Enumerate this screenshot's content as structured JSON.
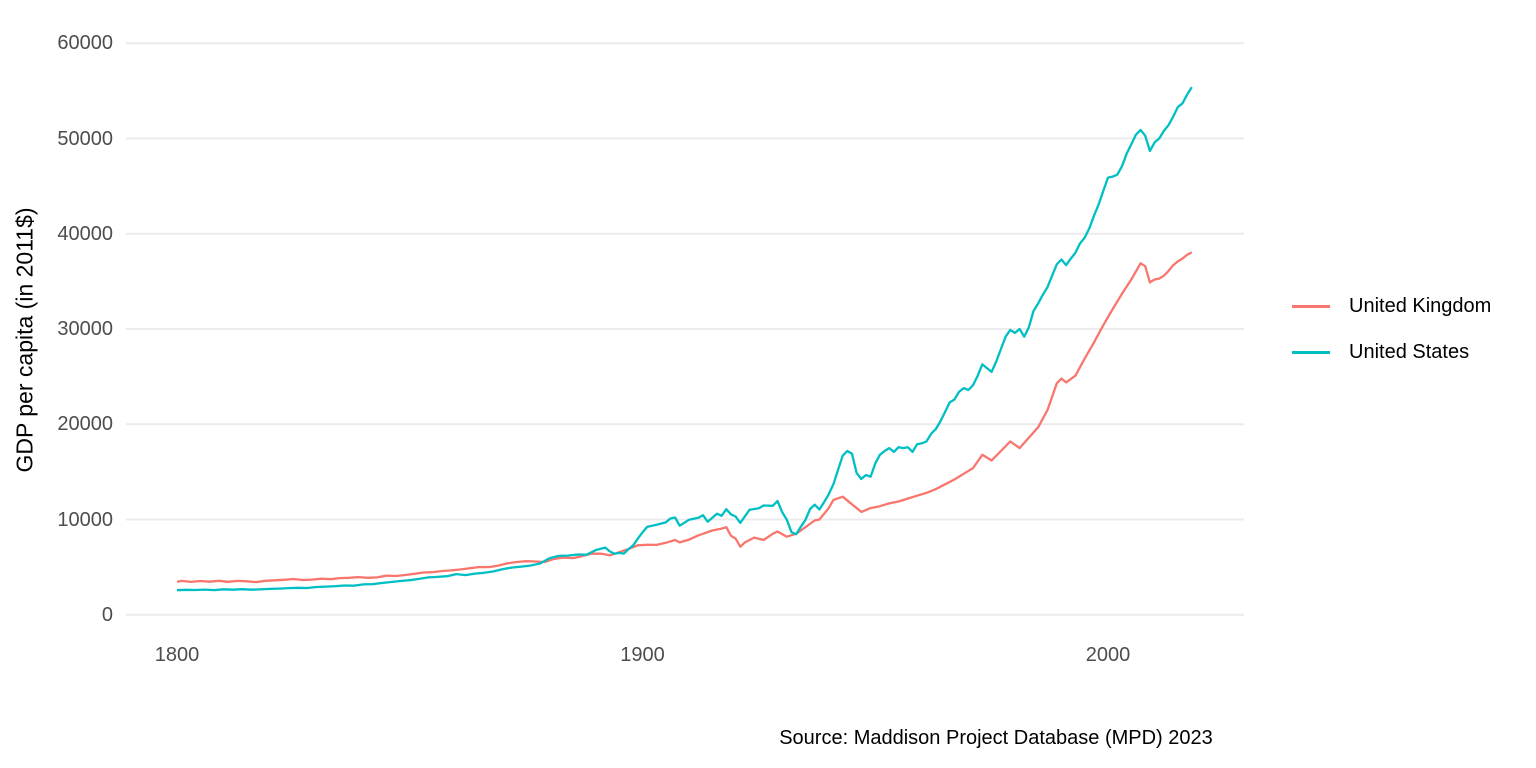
{
  "figure": {
    "y_axis_title": "GDP per capita (in 2011$)",
    "caption": "Source: Maddison Project Database (MPD) 2023"
  },
  "colors": {
    "background": "#FFFFFF",
    "gridline": "#EBEBEB",
    "tick_label": "#4D4D4D",
    "text": "#000000",
    "united_kingdom": "#F8766D",
    "united_states": "#00BFC4"
  },
  "chart_data": {
    "type": "line",
    "title": "",
    "xlabel": "",
    "ylabel": "GDP per capita (in 2011$)",
    "grid": "horizontal",
    "legend_position": "right",
    "xlim": [
      1789,
      2029
    ],
    "ylim": [
      0,
      60000
    ],
    "x_ticks": [
      1800,
      1900,
      2000
    ],
    "x_tick_labels": [
      "1800",
      "1900",
      "2000"
    ],
    "y_ticks": [
      0,
      10000,
      20000,
      30000,
      40000,
      50000,
      60000
    ],
    "y_tick_labels": [
      "0",
      "10000",
      "20000",
      "30000",
      "40000",
      "50000",
      "60000"
    ],
    "series": [
      {
        "name": "United Kingdom",
        "color": "#F8766D",
        "points": [
          [
            1800,
            3470
          ],
          [
            1801,
            3560
          ],
          [
            1803,
            3450
          ],
          [
            1805,
            3550
          ],
          [
            1807,
            3470
          ],
          [
            1809,
            3570
          ],
          [
            1811,
            3460
          ],
          [
            1813,
            3560
          ],
          [
            1815,
            3520
          ],
          [
            1817,
            3430
          ],
          [
            1819,
            3570
          ],
          [
            1821,
            3620
          ],
          [
            1823,
            3670
          ],
          [
            1825,
            3760
          ],
          [
            1827,
            3650
          ],
          [
            1829,
            3700
          ],
          [
            1831,
            3790
          ],
          [
            1833,
            3740
          ],
          [
            1835,
            3850
          ],
          [
            1837,
            3880
          ],
          [
            1839,
            3960
          ],
          [
            1841,
            3880
          ],
          [
            1843,
            3930
          ],
          [
            1845,
            4120
          ],
          [
            1847,
            4070
          ],
          [
            1849,
            4180
          ],
          [
            1851,
            4300
          ],
          [
            1853,
            4440
          ],
          [
            1855,
            4480
          ],
          [
            1857,
            4600
          ],
          [
            1859,
            4660
          ],
          [
            1861,
            4770
          ],
          [
            1863,
            4890
          ],
          [
            1865,
            5020
          ],
          [
            1867,
            5010
          ],
          [
            1869,
            5170
          ],
          [
            1871,
            5410
          ],
          [
            1873,
            5540
          ],
          [
            1875,
            5630
          ],
          [
            1877,
            5600
          ],
          [
            1879,
            5540
          ],
          [
            1881,
            5880
          ],
          [
            1883,
            6010
          ],
          [
            1885,
            5950
          ],
          [
            1887,
            6150
          ],
          [
            1889,
            6410
          ],
          [
            1891,
            6420
          ],
          [
            1893,
            6250
          ],
          [
            1895,
            6570
          ],
          [
            1897,
            6920
          ],
          [
            1899,
            7300
          ],
          [
            1901,
            7350
          ],
          [
            1903,
            7340
          ],
          [
            1905,
            7560
          ],
          [
            1907,
            7850
          ],
          [
            1908,
            7600
          ],
          [
            1910,
            7900
          ],
          [
            1912,
            8350
          ],
          [
            1913,
            8500
          ],
          [
            1915,
            8850
          ],
          [
            1917,
            9050
          ],
          [
            1918,
            9200
          ],
          [
            1919,
            8300
          ],
          [
            1920,
            8000
          ],
          [
            1921,
            7150
          ],
          [
            1922,
            7600
          ],
          [
            1924,
            8100
          ],
          [
            1926,
            7850
          ],
          [
            1928,
            8500
          ],
          [
            1929,
            8750
          ],
          [
            1931,
            8200
          ],
          [
            1933,
            8500
          ],
          [
            1935,
            9200
          ],
          [
            1937,
            9900
          ],
          [
            1938,
            10000
          ],
          [
            1940,
            11200
          ],
          [
            1941,
            12050
          ],
          [
            1943,
            12400
          ],
          [
            1945,
            11600
          ],
          [
            1947,
            10800
          ],
          [
            1949,
            11200
          ],
          [
            1951,
            11400
          ],
          [
            1953,
            11700
          ],
          [
            1955,
            11900
          ],
          [
            1957,
            12200
          ],
          [
            1959,
            12500
          ],
          [
            1961,
            12800
          ],
          [
            1963,
            13200
          ],
          [
            1965,
            13700
          ],
          [
            1967,
            14200
          ],
          [
            1969,
            14800
          ],
          [
            1971,
            15400
          ],
          [
            1973,
            16800
          ],
          [
            1974,
            16500
          ],
          [
            1975,
            16200
          ],
          [
            1977,
            17200
          ],
          [
            1979,
            18200
          ],
          [
            1981,
            17500
          ],
          [
            1983,
            18600
          ],
          [
            1985,
            19700
          ],
          [
            1987,
            21500
          ],
          [
            1989,
            24300
          ],
          [
            1990,
            24800
          ],
          [
            1991,
            24400
          ],
          [
            1993,
            25100
          ],
          [
            1995,
            26900
          ],
          [
            1997,
            28600
          ],
          [
            1999,
            30400
          ],
          [
            2001,
            32100
          ],
          [
            2003,
            33700
          ],
          [
            2005,
            35200
          ],
          [
            2007,
            36900
          ],
          [
            2008,
            36600
          ],
          [
            2009,
            34900
          ],
          [
            2010,
            35200
          ],
          [
            2011,
            35300
          ],
          [
            2012,
            35600
          ],
          [
            2013,
            36100
          ],
          [
            2014,
            36700
          ],
          [
            2015,
            37100
          ],
          [
            2016,
            37400
          ],
          [
            2017,
            37800
          ],
          [
            2018,
            38050
          ]
        ]
      },
      {
        "name": "United States",
        "color": "#00BFC4",
        "points": [
          [
            1800,
            2580
          ],
          [
            1802,
            2620
          ],
          [
            1804,
            2600
          ],
          [
            1806,
            2650
          ],
          [
            1808,
            2590
          ],
          [
            1810,
            2680
          ],
          [
            1812,
            2640
          ],
          [
            1814,
            2690
          ],
          [
            1816,
            2630
          ],
          [
            1818,
            2680
          ],
          [
            1820,
            2720
          ],
          [
            1822,
            2750
          ],
          [
            1824,
            2800
          ],
          [
            1826,
            2830
          ],
          [
            1828,
            2810
          ],
          [
            1830,
            2920
          ],
          [
            1832,
            2960
          ],
          [
            1834,
            3000
          ],
          [
            1836,
            3080
          ],
          [
            1838,
            3050
          ],
          [
            1840,
            3190
          ],
          [
            1842,
            3210
          ],
          [
            1844,
            3340
          ],
          [
            1846,
            3440
          ],
          [
            1848,
            3550
          ],
          [
            1850,
            3630
          ],
          [
            1852,
            3770
          ],
          [
            1854,
            3930
          ],
          [
            1856,
            3980
          ],
          [
            1858,
            4050
          ],
          [
            1860,
            4270
          ],
          [
            1862,
            4170
          ],
          [
            1864,
            4330
          ],
          [
            1866,
            4410
          ],
          [
            1868,
            4560
          ],
          [
            1870,
            4800
          ],
          [
            1872,
            4970
          ],
          [
            1874,
            5060
          ],
          [
            1876,
            5180
          ],
          [
            1878,
            5390
          ],
          [
            1880,
            5940
          ],
          [
            1882,
            6180
          ],
          [
            1884,
            6220
          ],
          [
            1886,
            6330
          ],
          [
            1888,
            6310
          ],
          [
            1890,
            6800
          ],
          [
            1892,
            7060
          ],
          [
            1893,
            6650
          ],
          [
            1894,
            6400
          ],
          [
            1895,
            6500
          ],
          [
            1896,
            6430
          ],
          [
            1897,
            6900
          ],
          [
            1898,
            7300
          ],
          [
            1899,
            8000
          ],
          [
            1900,
            8650
          ],
          [
            1901,
            9230
          ],
          [
            1903,
            9450
          ],
          [
            1905,
            9700
          ],
          [
            1906,
            10110
          ],
          [
            1907,
            10220
          ],
          [
            1908,
            9350
          ],
          [
            1910,
            9980
          ],
          [
            1912,
            10190
          ],
          [
            1913,
            10460
          ],
          [
            1914,
            9770
          ],
          [
            1916,
            10610
          ],
          [
            1917,
            10390
          ],
          [
            1918,
            11090
          ],
          [
            1919,
            10550
          ],
          [
            1920,
            10320
          ],
          [
            1921,
            9650
          ],
          [
            1923,
            11030
          ],
          [
            1925,
            11190
          ],
          [
            1926,
            11470
          ],
          [
            1928,
            11440
          ],
          [
            1929,
            11950
          ],
          [
            1930,
            10790
          ],
          [
            1931,
            9980
          ],
          [
            1932,
            8670
          ],
          [
            1933,
            8460
          ],
          [
            1934,
            9240
          ],
          [
            1935,
            9950
          ],
          [
            1936,
            11110
          ],
          [
            1937,
            11560
          ],
          [
            1938,
            11060
          ],
          [
            1939,
            11810
          ],
          [
            1940,
            12650
          ],
          [
            1941,
            13700
          ],
          [
            1942,
            15200
          ],
          [
            1943,
            16700
          ],
          [
            1944,
            17200
          ],
          [
            1945,
            16900
          ],
          [
            1946,
            14900
          ],
          [
            1947,
            14260
          ],
          [
            1948,
            14680
          ],
          [
            1949,
            14500
          ],
          [
            1950,
            15900
          ],
          [
            1951,
            16800
          ],
          [
            1952,
            17200
          ],
          [
            1953,
            17500
          ],
          [
            1954,
            17100
          ],
          [
            1955,
            17600
          ],
          [
            1956,
            17500
          ],
          [
            1957,
            17600
          ],
          [
            1958,
            17100
          ],
          [
            1959,
            17900
          ],
          [
            1960,
            18000
          ],
          [
            1961,
            18200
          ],
          [
            1962,
            19000
          ],
          [
            1963,
            19500
          ],
          [
            1964,
            20300
          ],
          [
            1965,
            21300
          ],
          [
            1966,
            22300
          ],
          [
            1967,
            22600
          ],
          [
            1968,
            23400
          ],
          [
            1969,
            23800
          ],
          [
            1970,
            23600
          ],
          [
            1971,
            24100
          ],
          [
            1972,
            25100
          ],
          [
            1973,
            26300
          ],
          [
            1974,
            25900
          ],
          [
            1975,
            25500
          ],
          [
            1976,
            26600
          ],
          [
            1977,
            27900
          ],
          [
            1978,
            29200
          ],
          [
            1979,
            29900
          ],
          [
            1980,
            29600
          ],
          [
            1981,
            30000
          ],
          [
            1982,
            29200
          ],
          [
            1983,
            30200
          ],
          [
            1984,
            31900
          ],
          [
            1985,
            32700
          ],
          [
            1986,
            33600
          ],
          [
            1987,
            34400
          ],
          [
            1988,
            35600
          ],
          [
            1989,
            36800
          ],
          [
            1990,
            37300
          ],
          [
            1991,
            36700
          ],
          [
            1992,
            37400
          ],
          [
            1993,
            38000
          ],
          [
            1994,
            39000
          ],
          [
            1995,
            39600
          ],
          [
            1996,
            40600
          ],
          [
            1997,
            41900
          ],
          [
            1998,
            43100
          ],
          [
            1999,
            44500
          ],
          [
            2000,
            45900
          ],
          [
            2001,
            46000
          ],
          [
            2002,
            46200
          ],
          [
            2003,
            47100
          ],
          [
            2004,
            48400
          ],
          [
            2005,
            49400
          ],
          [
            2006,
            50400
          ],
          [
            2007,
            50900
          ],
          [
            2008,
            50300
          ],
          [
            2009,
            48700
          ],
          [
            2010,
            49600
          ],
          [
            2011,
            50000
          ],
          [
            2012,
            50800
          ],
          [
            2013,
            51400
          ],
          [
            2014,
            52300
          ],
          [
            2015,
            53300
          ],
          [
            2016,
            53700
          ],
          [
            2017,
            54600
          ],
          [
            2018,
            55400
          ]
        ]
      }
    ]
  }
}
